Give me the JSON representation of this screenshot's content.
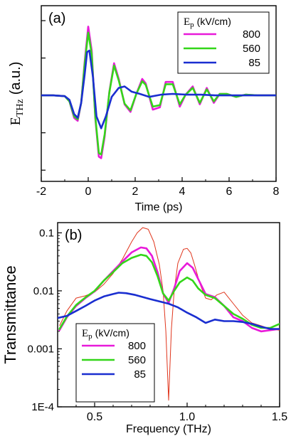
{
  "chart_data": [
    {
      "panel_label": "(a)",
      "type": "line",
      "xlabel": "Time (ps)",
      "ylabel": "E",
      "ylabel_sub": "THz",
      "ylabel_unit": "(a.u.)",
      "xlim": [
        -2,
        8
      ],
      "ylim": [
        -1.15,
        1.2
      ],
      "xticks": [
        -2,
        0,
        2,
        4,
        6,
        8
      ],
      "xtick_labels": [
        "-2",
        "0",
        "2",
        "4",
        "6",
        "8"
      ],
      "yticks": [
        -1.0,
        -0.5,
        0.0,
        0.5,
        1.0
      ],
      "grid": false,
      "legend": {
        "placement": "top-right",
        "title_main": "E",
        "title_sub": "p",
        "title_unit": "(kV/cm)"
      },
      "series": [
        {
          "name": "800",
          "color": "#e81ad9",
          "x": [
            -2,
            -1.5,
            -1,
            -0.8,
            -0.6,
            -0.45,
            -0.3,
            -0.15,
            0,
            0.15,
            0.3,
            0.45,
            0.55,
            0.7,
            0.9,
            1.1,
            1.3,
            1.55,
            1.8,
            2.05,
            2.3,
            2.45,
            2.75,
            3.05,
            3.3,
            3.6,
            3.9,
            4.15,
            4.45,
            4.75,
            5.05,
            5.35,
            5.6,
            5.9,
            6.3,
            6.7,
            7.2,
            7.6,
            8
          ],
          "y": [
            0,
            0,
            -0.01,
            -0.08,
            -0.3,
            -0.34,
            -0.1,
            0.45,
            0.92,
            0.6,
            -0.3,
            -0.82,
            -0.84,
            -0.55,
            0.05,
            0.43,
            0.22,
            -0.12,
            -0.22,
            0.02,
            0.22,
            0.16,
            -0.19,
            -0.16,
            0.18,
            0.18,
            -0.15,
            0.01,
            0.12,
            -0.12,
            0.1,
            -0.1,
            0.02,
            0.02,
            -0.02,
            0.01,
            0,
            0,
            0
          ]
        },
        {
          "name": "560",
          "color": "#33d619",
          "x": [
            -2,
            -1.5,
            -1,
            -0.8,
            -0.6,
            -0.45,
            -0.3,
            -0.15,
            0,
            0.15,
            0.3,
            0.45,
            0.55,
            0.7,
            0.9,
            1.1,
            1.3,
            1.55,
            1.8,
            2.05,
            2.3,
            2.45,
            2.75,
            3.05,
            3.3,
            3.6,
            3.9,
            4.15,
            4.45,
            4.75,
            5.05,
            5.35,
            5.6,
            5.9,
            6.3,
            6.7,
            7.2,
            7.6,
            8
          ],
          "y": [
            0,
            0,
            -0.01,
            -0.08,
            -0.28,
            -0.32,
            -0.1,
            0.42,
            0.84,
            0.55,
            -0.28,
            -0.77,
            -0.79,
            -0.52,
            0.04,
            0.4,
            0.2,
            -0.11,
            -0.2,
            0.02,
            0.19,
            0.14,
            -0.15,
            -0.13,
            0.15,
            0.15,
            -0.12,
            0.01,
            0.1,
            -0.1,
            0.08,
            -0.08,
            0.02,
            0.02,
            -0.02,
            0.01,
            0,
            0,
            0
          ]
        },
        {
          "name": "85",
          "color": "#1a2ed0",
          "x": [
            -2,
            -1.5,
            -1,
            -0.8,
            -0.6,
            -0.45,
            -0.3,
            -0.15,
            -0.05,
            0.05,
            0.2,
            0.35,
            0.55,
            0.75,
            1.0,
            1.3,
            1.55,
            1.85,
            2.2,
            2.6,
            3.1,
            3.6,
            4.2,
            4.8,
            5.4,
            6.0,
            6.6,
            7.2,
            8
          ],
          "y": [
            0,
            0,
            -0.01,
            -0.06,
            -0.25,
            -0.3,
            -0.1,
            0.28,
            0.58,
            0.6,
            0.25,
            -0.28,
            -0.44,
            -0.28,
            -0.02,
            0.1,
            0.12,
            0.05,
            0.02,
            -0.02,
            0.01,
            0.02,
            0.01,
            0.01,
            0,
            0,
            0,
            0,
            0
          ]
        }
      ]
    },
    {
      "panel_label": "(b)",
      "type": "line",
      "xlabel": "Frequency (THz)",
      "ylabel": "Transmittance",
      "yscale": "log",
      "xlim": [
        0.3,
        1.5
      ],
      "ylim": [
        0.0001,
        0.15
      ],
      "xticks": [
        0.5,
        1.0,
        1.5
      ],
      "xtick_labels": [
        "0.5",
        "1.0",
        "1.5"
      ],
      "yticks": [
        0.0001,
        0.001,
        0.01,
        0.1
      ],
      "ytick_labels": [
        "1E-4",
        "0.001",
        "0.01",
        "0.1"
      ],
      "grid": false,
      "legend": {
        "placement": "bottom-left",
        "title_main": "E",
        "title_sub": "p",
        "title_unit": "(kV/cm)"
      },
      "reference_curve": {
        "color": "#e0351c",
        "x": [
          0.31,
          0.35,
          0.4,
          0.45,
          0.5,
          0.55,
          0.6,
          0.65,
          0.7,
          0.73,
          0.76,
          0.79,
          0.82,
          0.85,
          0.87,
          0.885,
          0.9,
          0.915,
          0.93,
          0.95,
          0.98,
          1.0,
          1.02,
          1.04,
          1.07,
          1.1,
          1.13,
          1.16,
          1.2,
          1.25,
          1.3,
          1.35,
          1.4,
          1.45,
          1.5
        ],
        "y": [
          0.0025,
          0.0045,
          0.0075,
          0.0082,
          0.0095,
          0.013,
          0.02,
          0.035,
          0.07,
          0.1,
          0.123,
          0.115,
          0.07,
          0.028,
          0.01,
          0.002,
          0.00013,
          0.0022,
          0.01,
          0.03,
          0.052,
          0.054,
          0.045,
          0.028,
          0.013,
          0.0075,
          0.007,
          0.0085,
          0.0095,
          0.006,
          0.0038,
          0.0028,
          0.0025,
          0.0022,
          0.0021
        ]
      },
      "series": [
        {
          "name": "800",
          "color": "#e81ad9",
          "x": [
            0.31,
            0.35,
            0.4,
            0.45,
            0.5,
            0.55,
            0.6,
            0.65,
            0.7,
            0.75,
            0.78,
            0.81,
            0.84,
            0.87,
            0.9,
            0.93,
            0.96,
            1.0,
            1.03,
            1.06,
            1.1,
            1.15,
            1.2,
            1.25,
            1.3,
            1.35,
            1.4,
            1.45,
            1.5
          ],
          "y": [
            0.0021,
            0.0035,
            0.0055,
            0.0075,
            0.0098,
            0.015,
            0.022,
            0.032,
            0.046,
            0.056,
            0.054,
            0.04,
            0.021,
            0.009,
            0.0062,
            0.011,
            0.022,
            0.03,
            0.025,
            0.016,
            0.0088,
            0.0078,
            0.0055,
            0.0035,
            0.003,
            0.0023,
            0.002,
            0.0021,
            0.0022
          ]
        },
        {
          "name": "560",
          "color": "#33d619",
          "x": [
            0.31,
            0.35,
            0.4,
            0.45,
            0.5,
            0.55,
            0.6,
            0.65,
            0.7,
            0.75,
            0.78,
            0.81,
            0.84,
            0.87,
            0.9,
            0.93,
            0.96,
            1.0,
            1.03,
            1.06,
            1.1,
            1.15,
            1.2,
            1.25,
            1.3,
            1.35,
            1.4,
            1.45,
            1.5
          ],
          "y": [
            0.0022,
            0.0036,
            0.0057,
            0.0077,
            0.01,
            0.015,
            0.021,
            0.03,
            0.037,
            0.042,
            0.04,
            0.031,
            0.018,
            0.009,
            0.0068,
            0.01,
            0.014,
            0.017,
            0.015,
            0.011,
            0.0085,
            0.0075,
            0.0055,
            0.004,
            0.0033,
            0.0026,
            0.0023,
            0.0023,
            0.0027
          ]
        },
        {
          "name": "85",
          "color": "#1a2ed0",
          "x": [
            0.3,
            0.35,
            0.4,
            0.45,
            0.5,
            0.55,
            0.6,
            0.63,
            0.67,
            0.72,
            0.8,
            0.9,
            0.95,
            1.0,
            1.05,
            1.1,
            1.15,
            1.2,
            1.25,
            1.3,
            1.35,
            1.4,
            1.45,
            1.5
          ],
          "y": [
            0.0034,
            0.0037,
            0.0045,
            0.0055,
            0.0068,
            0.008,
            0.0088,
            0.0093,
            0.0091,
            0.0085,
            0.0072,
            0.006,
            0.0052,
            0.0042,
            0.0035,
            0.0028,
            0.0032,
            0.003,
            0.003,
            0.0029,
            0.0027,
            0.0024,
            0.0022,
            0.0022
          ]
        }
      ]
    }
  ]
}
